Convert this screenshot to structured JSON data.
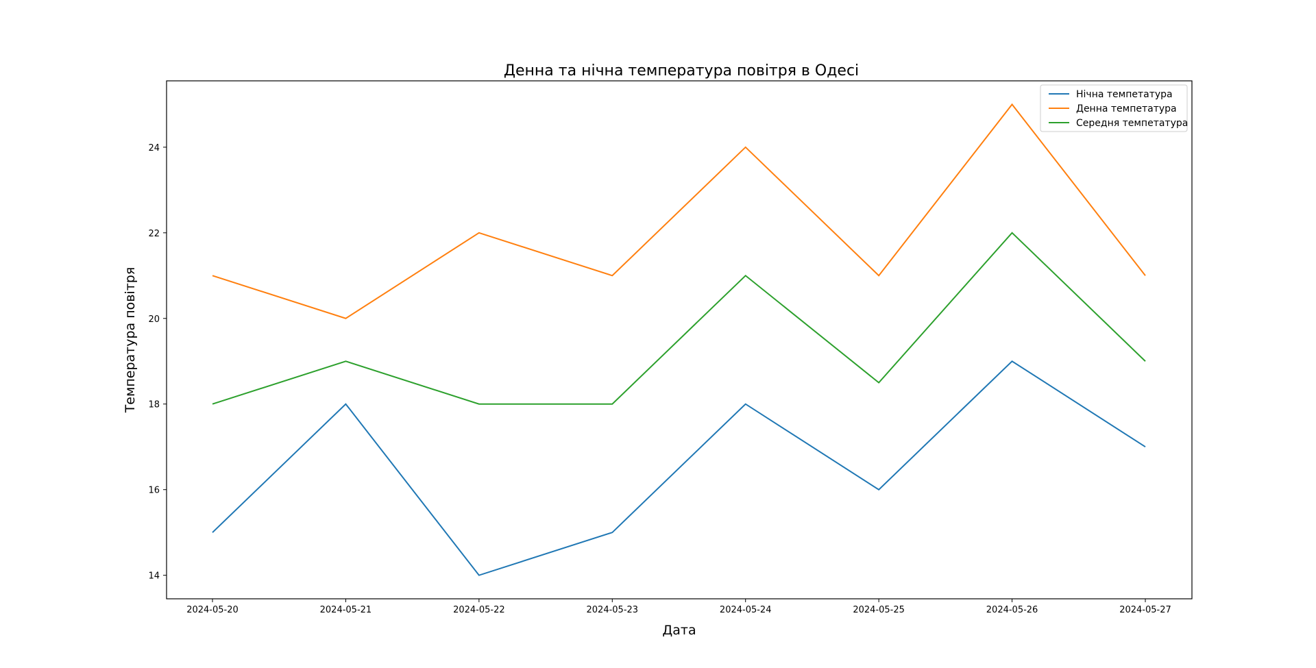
{
  "chart_data": {
    "type": "line",
    "title": "Денна та нічна температура повітря в Одесі",
    "xlabel": "Дата",
    "ylabel": "Температура повітря",
    "categories": [
      "2024-05-20",
      "2024-05-21",
      "2024-05-22",
      "2024-05-23",
      "2024-05-24",
      "2024-05-25",
      "2024-05-26",
      "2024-05-27"
    ],
    "series": [
      {
        "name": "Нічна темпетатура",
        "color": "#1f77b4",
        "values": [
          15,
          18,
          14,
          15,
          18,
          16,
          19,
          17
        ]
      },
      {
        "name": "Денна темпетатура",
        "color": "#ff7f0e",
        "values": [
          21,
          20,
          22,
          21,
          24,
          21,
          25,
          21
        ]
      },
      {
        "name": "Середня темпетатура",
        "color": "#2ca02c",
        "values": [
          18,
          19,
          18,
          18,
          21,
          18.5,
          22,
          19
        ]
      }
    ],
    "yticks": [
      14,
      16,
      18,
      20,
      22,
      24
    ],
    "ylim": [
      13.45,
      25.55
    ],
    "grid": false,
    "legend_position": "top-right"
  }
}
